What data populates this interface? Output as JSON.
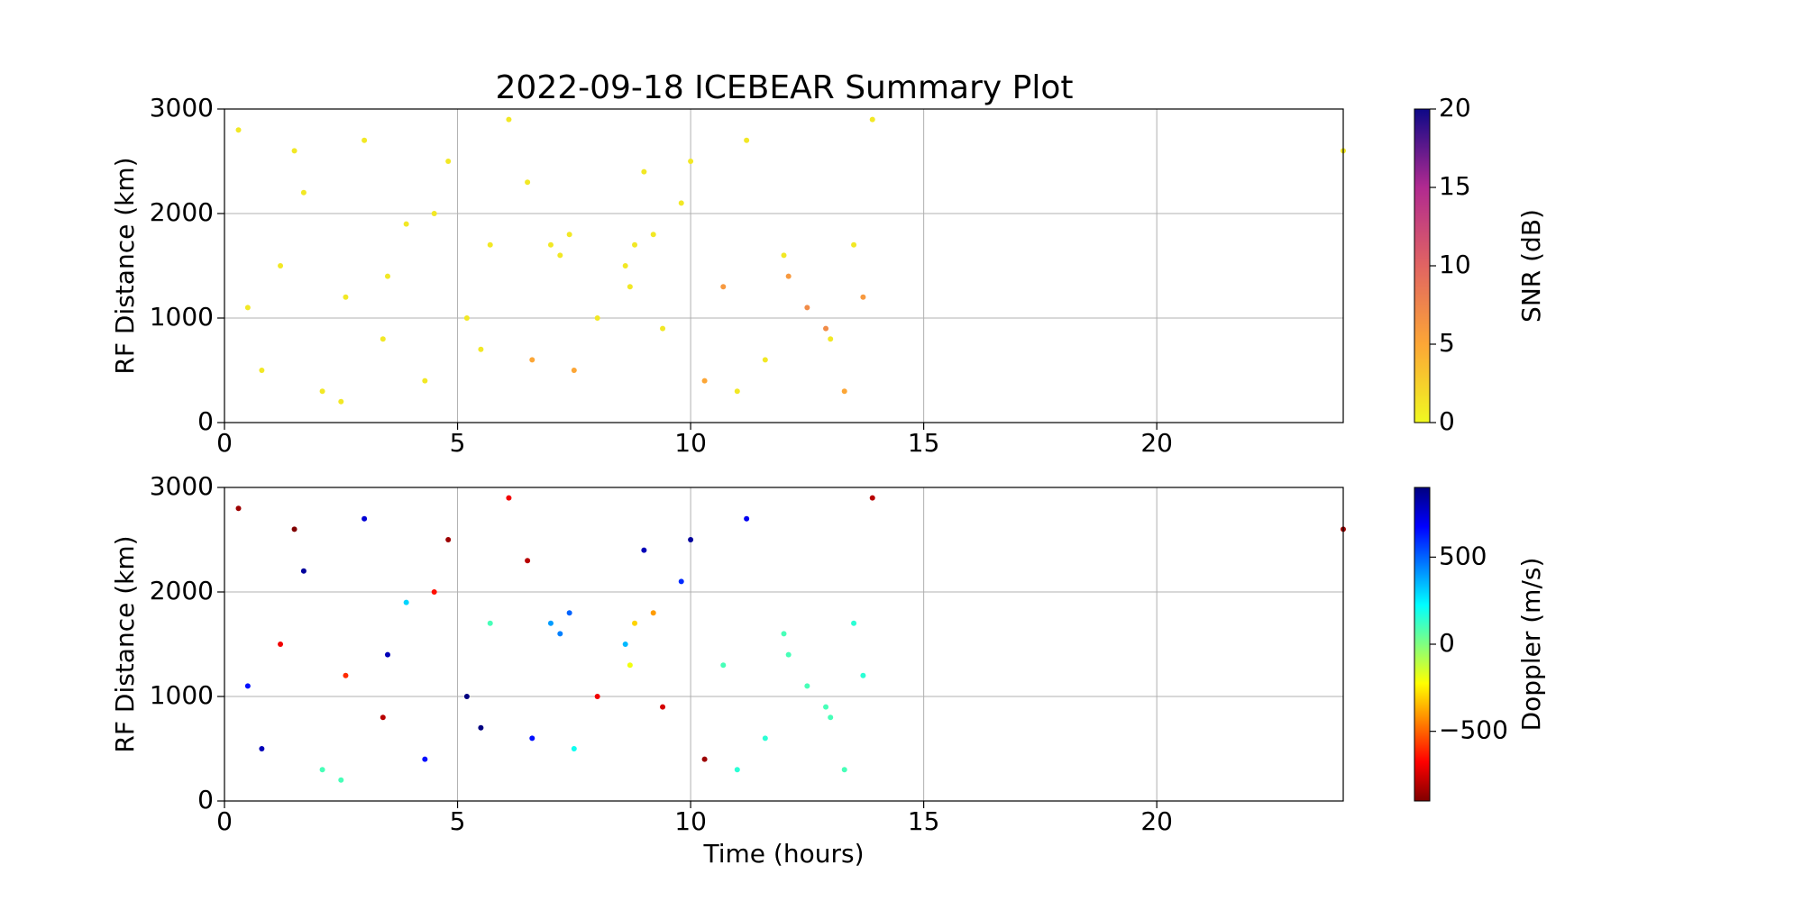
{
  "chart_data": [
    {
      "type": "scatter",
      "title": "2022-09-18 ICEBEAR Summary Plot",
      "y_label": "RF Distance (km)",
      "x": [
        0.3,
        0.8,
        1.2,
        1.7,
        2.1,
        2.6,
        3.0,
        3.4,
        3.9,
        4.3,
        4.8,
        5.2,
        5.7,
        6.1,
        6.6,
        7.0,
        7.2,
        7.4,
        8.6,
        8.7,
        8.8,
        9.0,
        9.4,
        9.8,
        10.3,
        10.7,
        11.2,
        11.6,
        12.1,
        12.5,
        12.9,
        13.3,
        13.7,
        13.9,
        0.5,
        1.5,
        2.5,
        3.5,
        4.5,
        5.5,
        6.5,
        7.5,
        8.0,
        9.2,
        10.0,
        11.0,
        12.0,
        13.0,
        13.5,
        24.0
      ],
      "y": [
        2800,
        500,
        1500,
        2200,
        300,
        1200,
        2700,
        800,
        1900,
        400,
        2500,
        1000,
        1700,
        2900,
        600,
        1700,
        1600,
        1800,
        1500,
        1300,
        1700,
        2400,
        900,
        2100,
        400,
        1300,
        2700,
        600,
        1400,
        1100,
        900,
        300,
        1200,
        2900,
        1100,
        2600,
        200,
        1400,
        2000,
        700,
        2300,
        500,
        1000,
        1800,
        2500,
        300,
        1600,
        800,
        1700,
        2600
      ],
      "c": [
        1,
        1,
        1,
        1,
        1,
        1,
        1,
        1,
        1,
        1,
        1,
        1,
        1,
        1,
        5,
        1,
        1,
        1,
        1,
        1,
        1,
        1,
        1,
        1,
        5,
        6,
        1,
        1,
        6,
        7,
        7,
        5,
        6,
        1,
        1,
        1,
        1,
        1,
        1,
        1,
        1,
        5,
        1,
        1,
        1,
        1,
        1,
        1,
        1,
        1
      ],
      "xlim": [
        0,
        24
      ],
      "ylim": [
        0,
        3000
      ],
      "xticks": [
        0,
        5,
        10,
        15,
        20
      ],
      "yticks": [
        0,
        1000,
        2000,
        3000
      ],
      "grid": true,
      "colormap": "plasma_r",
      "clim": [
        0,
        20
      ],
      "cticks": [
        0,
        5,
        10,
        15,
        20
      ],
      "colorbar_label": "SNR (dB)"
    },
    {
      "type": "scatter",
      "x_label": "Time (hours)",
      "y_label": "RF Distance (km)",
      "x": [
        0.3,
        0.8,
        1.2,
        1.7,
        2.1,
        2.6,
        3.0,
        3.4,
        3.9,
        4.3,
        4.8,
        5.2,
        5.7,
        6.1,
        6.6,
        7.0,
        7.2,
        7.4,
        8.6,
        8.7,
        8.8,
        9.0,
        9.4,
        9.8,
        10.3,
        10.7,
        11.2,
        11.6,
        12.1,
        12.5,
        12.9,
        13.3,
        13.7,
        13.9,
        0.5,
        1.5,
        2.5,
        3.5,
        4.5,
        5.5,
        6.5,
        7.5,
        8.0,
        9.2,
        10.0,
        11.0,
        12.0,
        13.0,
        13.5,
        24.0
      ],
      "y": [
        2800,
        500,
        1500,
        2200,
        300,
        1200,
        2700,
        800,
        1900,
        400,
        2500,
        1000,
        1700,
        2900,
        600,
        1700,
        1600,
        1800,
        1500,
        1300,
        1700,
        2400,
        900,
        2100,
        400,
        1300,
        2700,
        600,
        1400,
        1100,
        900,
        300,
        1200,
        2900,
        1100,
        2600,
        200,
        1400,
        2000,
        700,
        2300,
        500,
        1000,
        1800,
        2500,
        300,
        1600,
        800,
        1700,
        2600
      ],
      "c": [
        -850,
        800,
        -700,
        850,
        100,
        -600,
        750,
        -800,
        300,
        650,
        -850,
        900,
        100,
        -700,
        650,
        400,
        450,
        500,
        350,
        -200,
        -300,
        800,
        -750,
        600,
        -850,
        100,
        700,
        150,
        100,
        100,
        100,
        100,
        150,
        -800,
        650,
        -900,
        100,
        800,
        -650,
        900,
        -800,
        200,
        -700,
        -400,
        850,
        150,
        100,
        100,
        150,
        -850
      ],
      "xlim": [
        0,
        24
      ],
      "ylim": [
        0,
        3000
      ],
      "xticks": [
        0,
        5,
        10,
        15,
        20
      ],
      "yticks": [
        0,
        1000,
        2000,
        3000
      ],
      "grid": true,
      "colormap": "jet_r",
      "clim": [
        -900,
        900
      ],
      "cticks": [
        {
          "value": -500,
          "label": "−500"
        },
        0,
        500
      ],
      "colorbar_label": "Doppler (m/s)"
    }
  ]
}
